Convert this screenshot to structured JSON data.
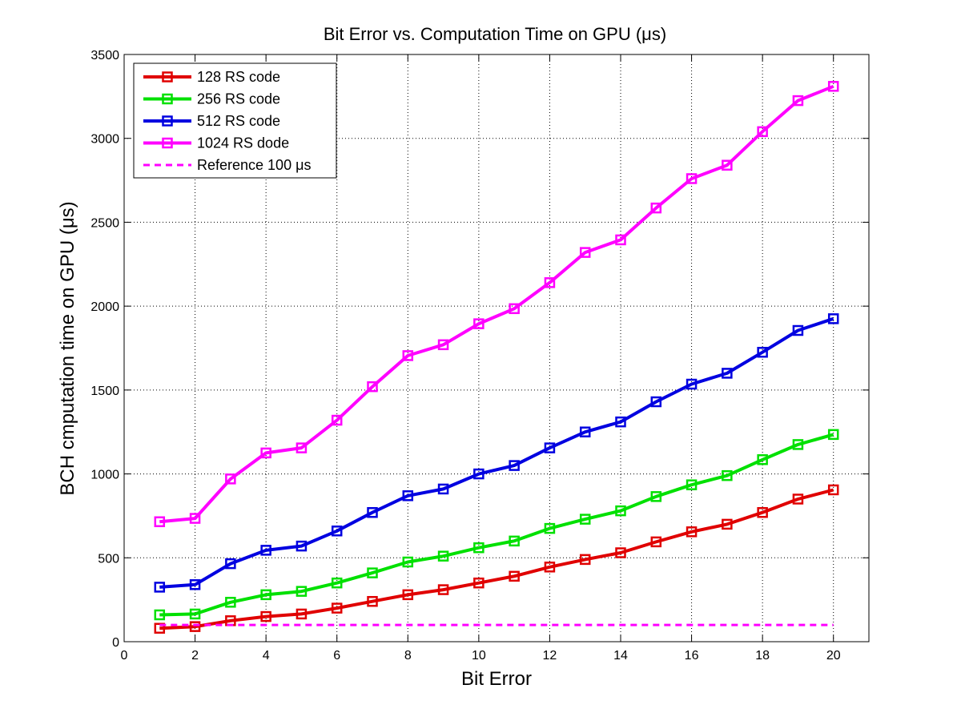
{
  "chart_data": {
    "type": "line",
    "title": "Bit Error vs. Computation Time on GPU (μs)",
    "xlabel": "Bit Error",
    "ylabel": "BCH cmputation time on GPU (μs)",
    "xlim": [
      0,
      21
    ],
    "ylim": [
      0,
      3500
    ],
    "xticks": [
      0,
      2,
      4,
      6,
      8,
      10,
      12,
      14,
      16,
      18,
      20
    ],
    "yticks": [
      0,
      500,
      1000,
      1500,
      2000,
      2500,
      3000,
      3500
    ],
    "grid": true,
    "legend_position": "top-left",
    "x": [
      1,
      2,
      3,
      4,
      5,
      6,
      7,
      8,
      9,
      10,
      11,
      12,
      13,
      14,
      15,
      16,
      17,
      18,
      19,
      20
    ],
    "series": [
      {
        "name": "128 RS code",
        "color": "#e00000",
        "marker": "square",
        "values": [
          80,
          90,
          125,
          150,
          165,
          200,
          240,
          280,
          310,
          350,
          390,
          445,
          490,
          530,
          595,
          655,
          700,
          770,
          850,
          905
        ]
      },
      {
        "name": "256 RS code",
        "color": "#00e000",
        "marker": "square",
        "values": [
          160,
          165,
          235,
          280,
          300,
          350,
          410,
          475,
          510,
          560,
          600,
          675,
          730,
          780,
          865,
          935,
          990,
          1085,
          1175,
          1235
        ]
      },
      {
        "name": "512 RS code",
        "color": "#0000e0",
        "marker": "square",
        "values": [
          325,
          340,
          465,
          545,
          570,
          660,
          770,
          870,
          910,
          1000,
          1050,
          1155,
          1250,
          1310,
          1430,
          1535,
          1600,
          1725,
          1855,
          1925
        ]
      },
      {
        "name": "1024 RS dode",
        "color": "#ff00ff",
        "marker": "square",
        "values": [
          715,
          735,
          970,
          1125,
          1155,
          1320,
          1520,
          1705,
          1770,
          1895,
          1985,
          2140,
          2320,
          2395,
          2585,
          2760,
          2840,
          3040,
          3225,
          3310
        ]
      },
      {
        "name": "Reference 100 μs",
        "color": "#ff00ff",
        "style": "dashed",
        "marker": "none",
        "x": [
          1,
          20
        ],
        "values": [
          100,
          100
        ]
      }
    ]
  }
}
